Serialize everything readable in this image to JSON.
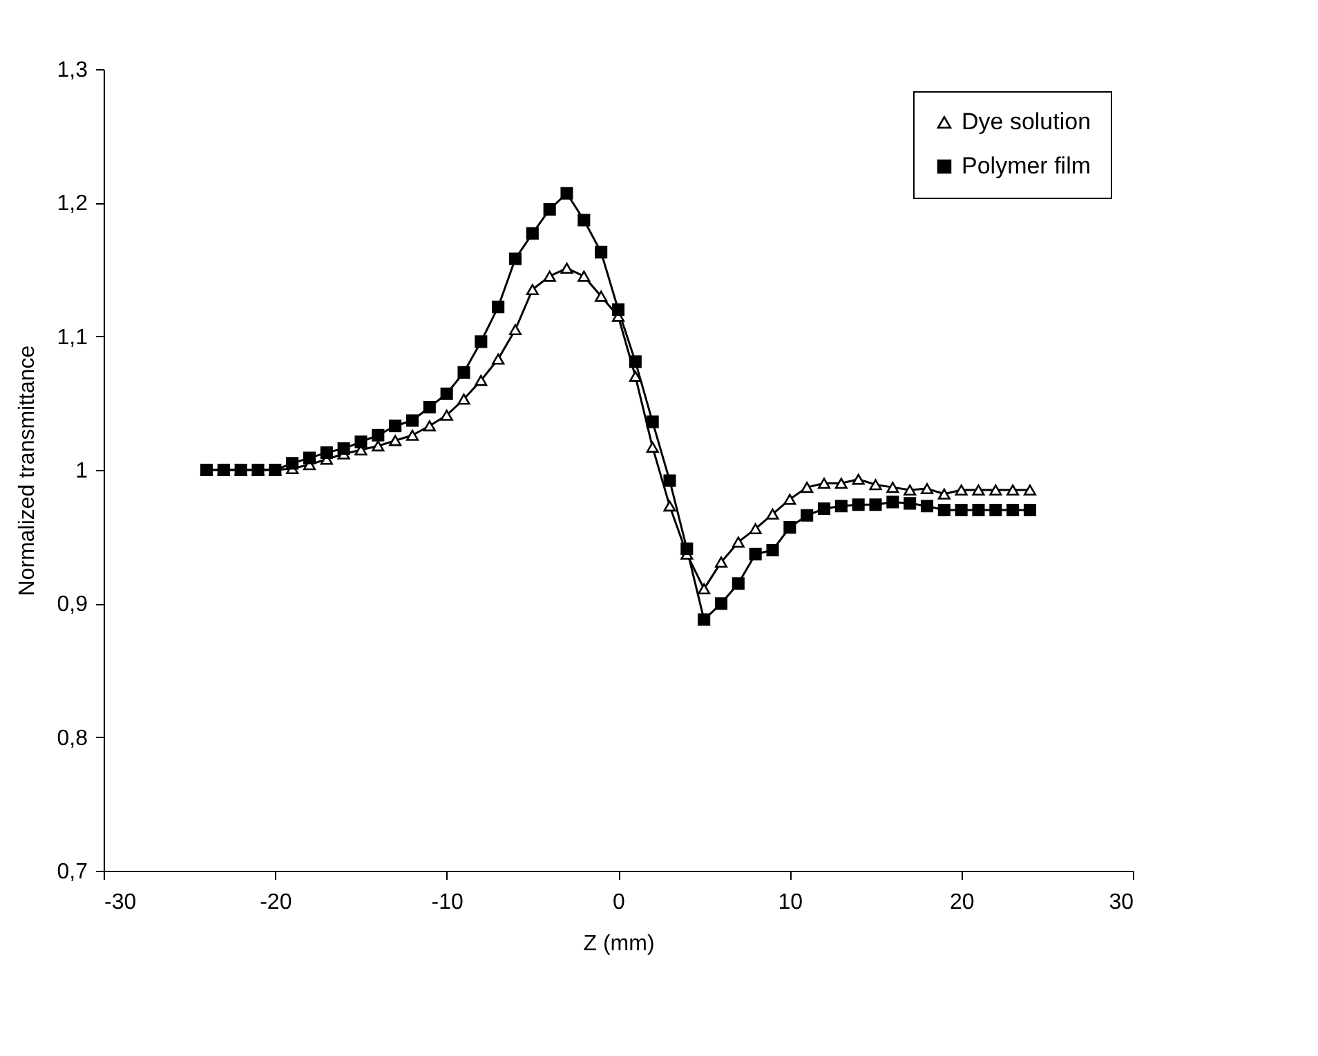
{
  "chart_data": {
    "type": "line",
    "xlabel": "Z (mm)",
    "ylabel": "Normalized transmittance",
    "x": [
      -24,
      -23,
      -22,
      -21,
      -20,
      -19,
      -18,
      -17,
      -16,
      -15,
      -14,
      -13,
      -12,
      -11,
      -10,
      -9,
      -8,
      -7,
      -6,
      -5,
      -4,
      -3,
      -2,
      -1,
      0,
      1,
      2,
      3,
      4,
      5,
      6,
      7,
      8,
      9,
      10,
      11,
      12,
      13,
      14,
      15,
      16,
      17,
      18,
      19,
      20,
      21,
      22,
      23,
      24
    ],
    "series": [
      {
        "name": "Dye solution",
        "color": "#000000",
        "marker": "triangle",
        "values": [
          1.0,
          1.0,
          1.0,
          1.0,
          1.0,
          1.001,
          1.004,
          1.008,
          1.012,
          1.015,
          1.018,
          1.022,
          1.026,
          1.033,
          1.041,
          1.053,
          1.067,
          1.083,
          1.105,
          1.135,
          1.145,
          1.151,
          1.145,
          1.13,
          1.115,
          1.07,
          1.017,
          0.973,
          0.937,
          0.911,
          0.931,
          0.946,
          0.956,
          0.967,
          0.978,
          0.987,
          0.99,
          0.99,
          0.993,
          0.989,
          0.987,
          0.985,
          0.986,
          0.982,
          0.985,
          0.985,
          0.985,
          0.985,
          0.985
        ]
      },
      {
        "name": "Polymer film",
        "color": "#000000",
        "marker": "square",
        "values": [
          1.0,
          1.0,
          1.0,
          1.0,
          1.0,
          1.005,
          1.009,
          1.013,
          1.016,
          1.021,
          1.026,
          1.033,
          1.037,
          1.047,
          1.057,
          1.073,
          1.096,
          1.122,
          1.158,
          1.177,
          1.195,
          1.207,
          1.187,
          1.163,
          1.12,
          1.081,
          1.036,
          0.992,
          0.941,
          0.888,
          0.9,
          0.915,
          0.937,
          0.94,
          0.957,
          0.966,
          0.971,
          0.973,
          0.974,
          0.974,
          0.976,
          0.975,
          0.973,
          0.97,
          0.97,
          0.97,
          0.97,
          0.97,
          0.97
        ]
      }
    ],
    "xlim": [
      -30,
      30
    ],
    "xticks": [
      -30,
      -20,
      -10,
      0,
      10,
      20,
      30
    ],
    "ylim": [
      0.7,
      1.3
    ],
    "yticks": [
      {
        "value": 0.7,
        "label": "0,7"
      },
      {
        "value": 0.8,
        "label": "0,8"
      },
      {
        "value": 0.9,
        "label": "0,9"
      },
      {
        "value": 1,
        "label": "1"
      },
      {
        "value": 1.1,
        "label": "1,1"
      },
      {
        "value": 1.2,
        "label": "1,2"
      },
      {
        "value": 1.3,
        "label": "1,3"
      }
    ],
    "legend": "top right",
    "grid": false,
    "line_style": "solid"
  }
}
